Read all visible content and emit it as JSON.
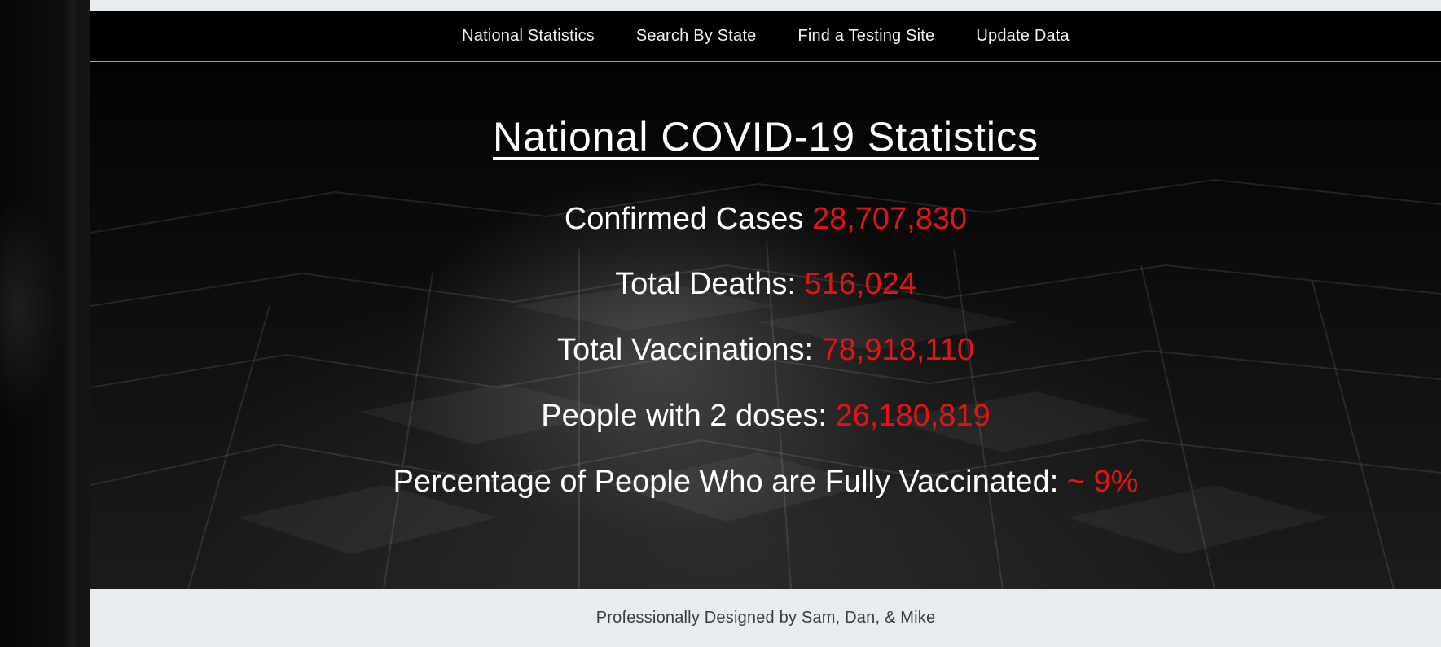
{
  "nav": {
    "items": [
      {
        "label": "National Statistics"
      },
      {
        "label": "Search By State"
      },
      {
        "label": "Find a Testing Site"
      },
      {
        "label": "Update Data"
      }
    ]
  },
  "main": {
    "title": "National COVID-19 Statistics",
    "stats": [
      {
        "label": "Confirmed Cases ",
        "value": "28,707,830"
      },
      {
        "label": "Total Deaths: ",
        "value": "516,024"
      },
      {
        "label": "Total Vaccinations: ",
        "value": "78,918,110"
      },
      {
        "label": "People with 2 doses: ",
        "value": "26,180,819"
      },
      {
        "label": "Percentage of People Who are Fully Vaccinated: ",
        "value": "~ 9%"
      }
    ]
  },
  "footer": {
    "text": "Professionally Designed by Sam, Dan, & Mike"
  },
  "colors": {
    "accent_value": "#e31414",
    "navbar_bg": "#000000",
    "page_bg": "#e9ecef"
  }
}
